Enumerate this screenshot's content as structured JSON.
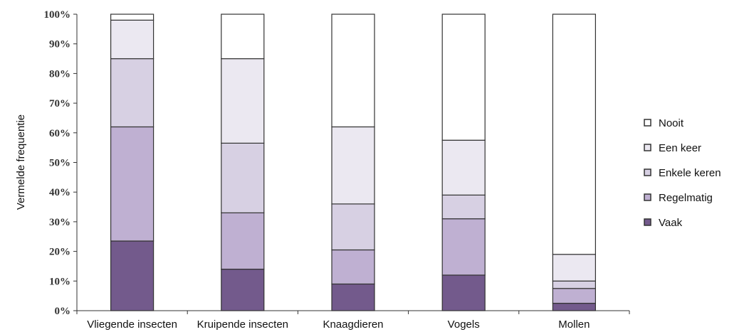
{
  "chart_data": {
    "type": "bar",
    "stacked": true,
    "percent": true,
    "ylabel": "Vermelde frequentie",
    "ylim": [
      0,
      100
    ],
    "yticks": [
      "0%",
      "10%",
      "20%",
      "30%",
      "40%",
      "50%",
      "60%",
      "70%",
      "80%",
      "90%",
      "100%"
    ],
    "categories": [
      "Vliegende insecten",
      "Kruipende insecten",
      "Knaagdieren",
      "Vogels",
      "Mollen"
    ],
    "series": [
      {
        "name": "Vaak",
        "color": "#735a8c",
        "values": [
          23.5,
          14,
          9,
          12,
          2.5
        ]
      },
      {
        "name": "Regelmatig",
        "color": "#bfb0d2",
        "values": [
          38.5,
          19,
          11.5,
          19,
          5
        ]
      },
      {
        "name": "Enkele keren",
        "color": "#d7d0e3",
        "values": [
          23,
          23.5,
          15.5,
          8,
          2.5
        ]
      },
      {
        "name": "Een keer",
        "color": "#ebe8f1",
        "values": [
          13,
          28.5,
          26,
          18.5,
          9
        ]
      },
      {
        "name": "Nooit",
        "color": "#ffffff",
        "values": [
          2,
          15,
          38,
          42.5,
          81
        ]
      }
    ],
    "legend_position": "right",
    "legend_order": [
      "Nooit",
      "Een keer",
      "Enkele keren",
      "Regelmatig",
      "Vaak"
    ],
    "grid": false
  }
}
